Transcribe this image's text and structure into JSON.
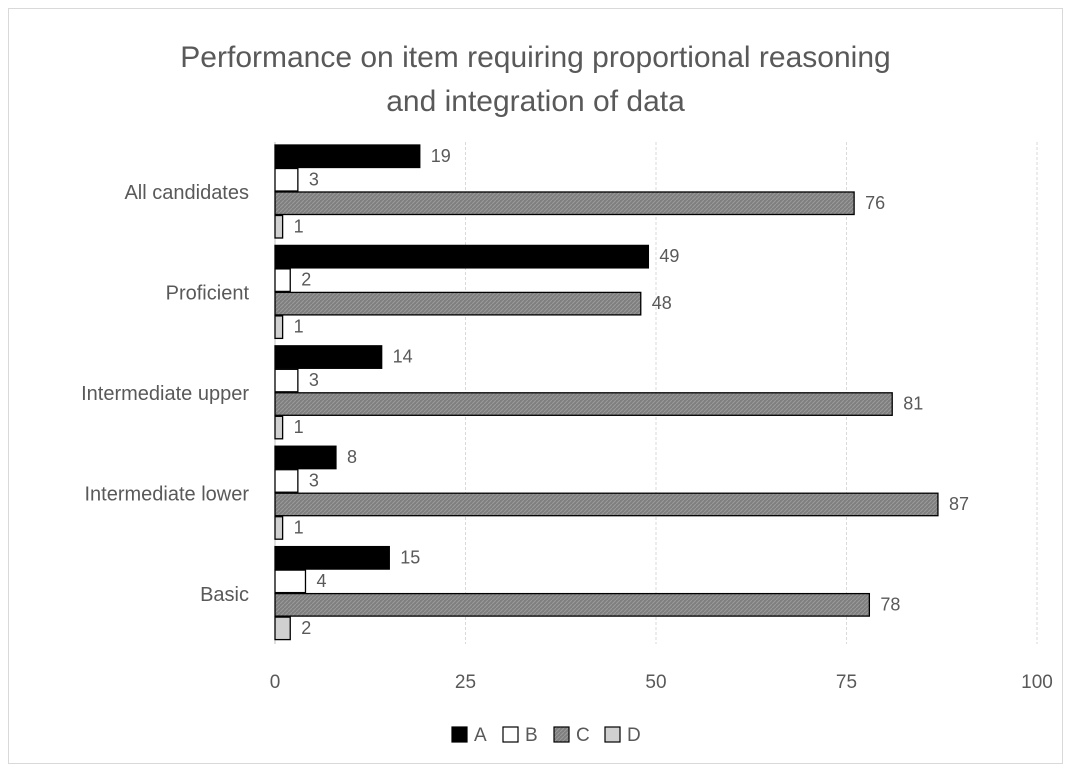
{
  "chart_data": {
    "type": "bar",
    "orientation": "horizontal",
    "title": "Performance on item requiring proportional reasoning and integration of data",
    "title_lines": [
      "Performance on item requiring proportional reasoning",
      "and integration of data"
    ],
    "categories": [
      "All candidates",
      "Proficient",
      "Intermediate upper",
      "Intermediate lower",
      "Basic"
    ],
    "series": [
      {
        "name": "A",
        "values": [
          19,
          49,
          14,
          8,
          15
        ],
        "color": "#000000",
        "stroke": "#000000"
      },
      {
        "name": "B",
        "values": [
          3,
          2,
          3,
          3,
          4
        ],
        "color": "#ffffff",
        "stroke": "#000000"
      },
      {
        "name": "C",
        "values": [
          76,
          48,
          81,
          87,
          78
        ],
        "color": "#7f7f7f",
        "stroke": "#000000"
      },
      {
        "name": "D",
        "values": [
          1,
          1,
          1,
          1,
          2
        ],
        "color": "#d0d0d0",
        "stroke": "#000000"
      }
    ],
    "xlim": [
      0,
      100
    ],
    "xticks": [
      0,
      25,
      50,
      75,
      100
    ],
    "grid": true,
    "legend_position": "bottom",
    "data_labels": true
  }
}
